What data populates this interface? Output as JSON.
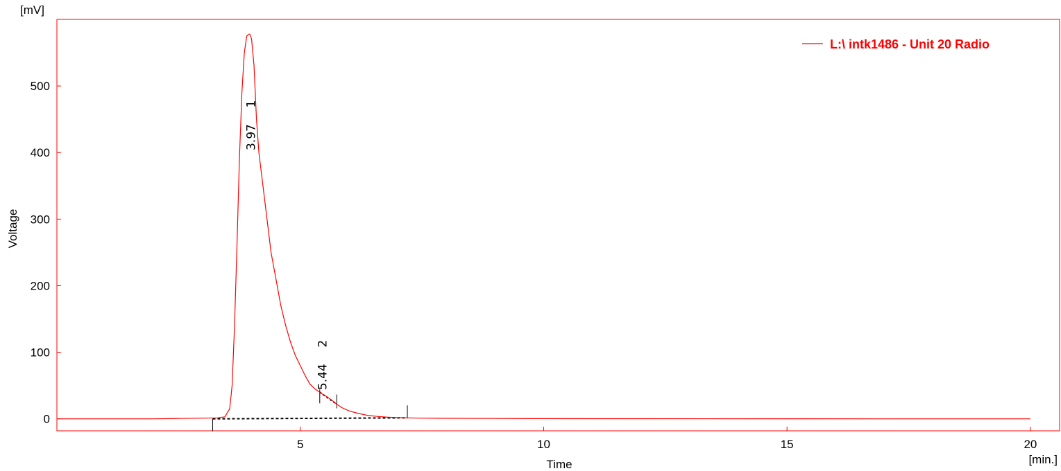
{
  "chart_data": {
    "type": "line",
    "title": "",
    "xlabel": "Time",
    "ylabel": "Voltage",
    "x_unit": "[min.]",
    "y_unit": "[mV]",
    "xlim": [
      0,
      20.6
    ],
    "ylim": [
      -18,
      600
    ],
    "x_ticks": [
      5,
      10,
      15,
      20
    ],
    "y_ticks": [
      0,
      100,
      200,
      300,
      400,
      500
    ],
    "grid": false,
    "legend": {
      "placement": "top-right",
      "entries": [
        "L:\\ intk1486 - Unit 20 Radio"
      ]
    },
    "series": [
      {
        "name": "L:\\ intk1486 - Unit 20 Radio",
        "color": "#ff0000",
        "x": [
          0,
          1,
          2,
          2.5,
          3.0,
          3.3,
          3.45,
          3.55,
          3.6,
          3.65,
          3.7,
          3.75,
          3.8,
          3.85,
          3.9,
          3.95,
          3.97,
          4.0,
          4.05,
          4.1,
          4.15,
          4.2,
          4.3,
          4.4,
          4.5,
          4.6,
          4.7,
          4.8,
          4.9,
          5.0,
          5.1,
          5.2,
          5.3,
          5.44,
          5.55,
          5.65,
          5.75,
          5.85,
          6.0,
          6.2,
          6.4,
          6.6,
          6.8,
          7.0,
          7.2,
          7.5,
          8,
          9,
          10,
          12,
          15,
          18,
          20
        ],
        "y": [
          0,
          0,
          0,
          0.5,
          1,
          1.5,
          3,
          15,
          50,
          140,
          260,
          390,
          490,
          550,
          575,
          578,
          577,
          570,
          530,
          450,
          400,
          370,
          310,
          250,
          210,
          170,
          140,
          115,
          95,
          80,
          65,
          52,
          45,
          38,
          33,
          28,
          22,
          17,
          12,
          8,
          5,
          3.5,
          2.5,
          2,
          1.5,
          1,
          0.8,
          0.5,
          0.3,
          0.2,
          0.1,
          0.05,
          0
        ]
      }
    ],
    "peaks": [
      {
        "number": "1",
        "time": "3.97",
        "rt": 3.97
      },
      {
        "number": "2",
        "time": "5.44",
        "rt": 5.44
      }
    ],
    "baseline_markers": [
      3.2,
      7.2
    ],
    "peak_split_markers": [
      5.4,
      5.75
    ]
  }
}
